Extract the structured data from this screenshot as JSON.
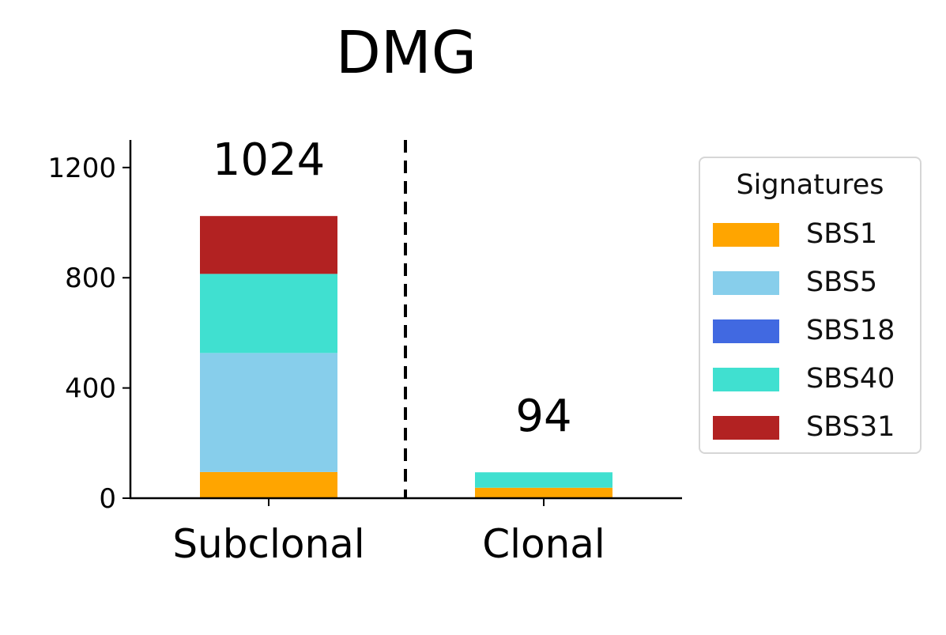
{
  "chart_data": {
    "type": "bar",
    "stacked": true,
    "title": "DMG",
    "categories": [
      "Subclonal",
      "Clonal"
    ],
    "totals_labels": [
      "1024",
      "94"
    ],
    "series": [
      {
        "name": "SBS1",
        "color": "#FFA500",
        "values": [
          95,
          38
        ]
      },
      {
        "name": "SBS5",
        "color": "#87CEEB",
        "values": [
          432,
          0
        ]
      },
      {
        "name": "SBS18",
        "color": "#4169E1",
        "values": [
          0,
          0
        ]
      },
      {
        "name": "SBS40",
        "color": "#40E0D0",
        "values": [
          287,
          56
        ]
      },
      {
        "name": "SBS31",
        "color": "#B22222",
        "values": [
          210,
          0
        ]
      }
    ],
    "ylim": [
      0,
      1300
    ],
    "yticks": [
      "0",
      "400",
      "800",
      "1200"
    ],
    "divider": "dashed vertical line between categories",
    "legend": {
      "title": "Signatures",
      "position": "right"
    }
  }
}
